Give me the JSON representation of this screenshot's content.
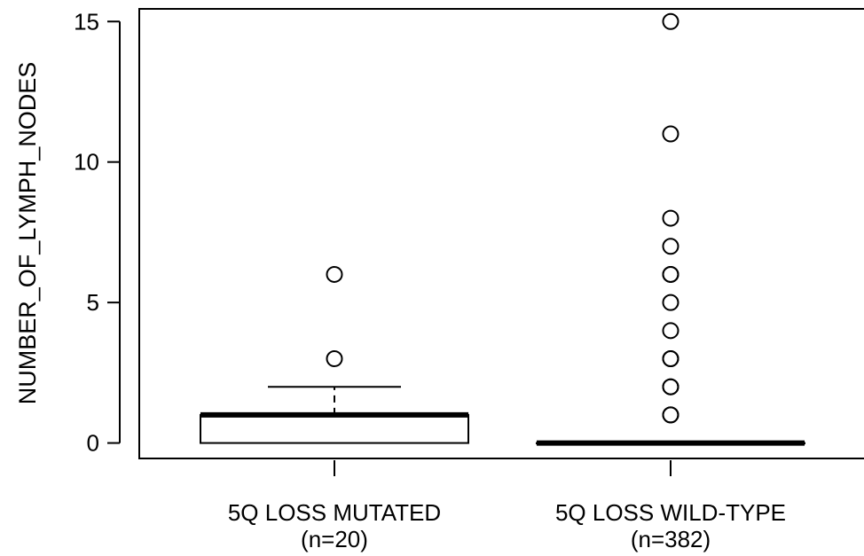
{
  "chart_data": {
    "type": "box",
    "ylabel": "NUMBER_OF_LYMPH_NODES",
    "ylim": [
      -0.55,
      15.45
    ],
    "yticks": [
      0,
      5,
      10,
      15
    ],
    "ytick_labels": [
      "0",
      "5",
      "10",
      "15"
    ],
    "grid": false,
    "legend": "none",
    "groups": [
      {
        "label": "5Q LOSS MUTATED",
        "n_label": "(n=20)",
        "min": 0,
        "q1": 0,
        "median": 1,
        "q3": 1,
        "max": 2,
        "outliers": [
          3,
          6
        ]
      },
      {
        "label": "5Q LOSS WILD-TYPE",
        "n_label": "(n=382)",
        "min": 0,
        "q1": 0,
        "median": 0,
        "q3": 0,
        "max": 0,
        "outliers": [
          1,
          1,
          2,
          2,
          3,
          3,
          4,
          5,
          6,
          6,
          7,
          8,
          11,
          15
        ]
      }
    ]
  }
}
